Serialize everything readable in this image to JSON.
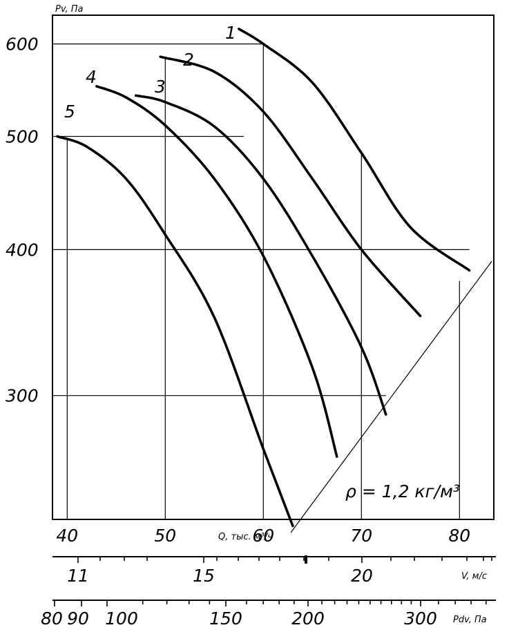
{
  "chart_data": {
    "type": "line",
    "ylabel": "Pv, Па",
    "xlabel": "Q, тыс. м³/ч",
    "y_scale": "log",
    "ylim": [
      235,
      635
    ],
    "xlim": [
      38.5,
      83.5
    ],
    "y_ticks": [
      {
        "value": 300,
        "label": "300"
      },
      {
        "value": 400,
        "label": "400"
      },
      {
        "value": 500,
        "label": "500"
      },
      {
        "value": 600,
        "label": "600"
      }
    ],
    "x_ticks": [
      {
        "value": 40,
        "label": "40"
      },
      {
        "value": 50,
        "label": "50"
      },
      {
        "value": 60,
        "label": "60"
      },
      {
        "value": 70,
        "label": "70"
      },
      {
        "value": 80,
        "label": "80"
      }
    ],
    "grid_verticals": [
      40,
      50,
      60,
      70,
      80
    ],
    "grid_horizontals": [
      300,
      400,
      500,
      600
    ],
    "series": [
      {
        "name": "1",
        "points": [
          [
            57.5,
            618
          ],
          [
            60,
            600
          ],
          [
            65,
            556
          ],
          [
            70,
            484
          ],
          [
            75,
            418
          ],
          [
            81,
            384
          ]
        ]
      },
      {
        "name": "2",
        "points": [
          [
            49.5,
            585
          ],
          [
            55,
            568
          ],
          [
            60,
            525
          ],
          [
            65,
            460
          ],
          [
            70,
            400
          ],
          [
            76,
            351
          ]
        ]
      },
      {
        "name": "3",
        "points": [
          [
            47,
            542
          ],
          [
            50,
            535
          ],
          [
            55,
            510
          ],
          [
            60,
            460
          ],
          [
            65,
            395
          ],
          [
            70,
            330
          ],
          [
            72.5,
            289
          ]
        ]
      },
      {
        "name": "4",
        "points": [
          [
            43,
            552
          ],
          [
            46,
            540
          ],
          [
            50,
            511
          ],
          [
            55,
            460
          ],
          [
            60,
            395
          ],
          [
            65,
            317
          ],
          [
            67.5,
            266
          ]
        ]
      },
      {
        "name": "5",
        "points": [
          [
            39,
            500
          ],
          [
            42,
            490
          ],
          [
            46,
            460
          ],
          [
            50,
            412
          ],
          [
            55,
            350
          ],
          [
            60,
            270
          ],
          [
            63,
            232
          ]
        ]
      }
    ],
    "system_line": {
      "label": "ρ = 1,2 кг/м³",
      "from": [
        62.8,
        229
      ],
      "to": [
        83.3,
        391
      ]
    },
    "velocity_axis": {
      "label": "V, м/с",
      "major": [
        {
          "value": 11,
          "label": "11"
        },
        {
          "value": 15,
          "label": "15"
        },
        {
          "value": 20,
          "label": "20"
        }
      ],
      "minor": [
        12,
        13,
        14,
        16,
        17,
        18,
        19,
        21,
        22,
        23,
        24,
        25
      ]
    },
    "dynamic_pressure_axis": {
      "label": "Pdv, Па",
      "major": [
        {
          "value": 80,
          "label": "80"
        },
        {
          "value": 90,
          "label": "90"
        },
        {
          "value": 100,
          "label": "100"
        },
        {
          "value": 150,
          "label": "150"
        },
        {
          "value": 200,
          "label": "200"
        },
        {
          "value": 300,
          "label": "300"
        }
      ],
      "minor": [
        110,
        120,
        130,
        140,
        160,
        170,
        180,
        190,
        210,
        220,
        230,
        240,
        250,
        260,
        270,
        280,
        290,
        320,
        340,
        360,
        380
      ]
    }
  }
}
